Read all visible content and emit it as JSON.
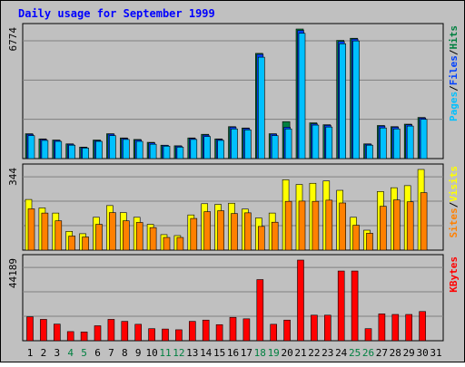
{
  "title": "Daily usage for September 1999",
  "colors": {
    "background": "#c0c0c0",
    "panel": "#c0c0c0",
    "border": "#000000",
    "grid": "#808080",
    "title": "#0000ff",
    "hits": "#008040",
    "files": "#0040ff",
    "pages": "#00c0ff",
    "visits": "#ffff00",
    "sites": "#ff8000",
    "kbytes": "#ff0000",
    "label_weekday": "#000000",
    "label_weekend": "#008040"
  },
  "chart_data": [
    {
      "type": "bar",
      "panel": "hits-files-pages",
      "ylabel": "6774",
      "ylim": [
        0,
        6774
      ],
      "legend": {
        "pages": "Pages",
        "files": "Files",
        "hits": "Hits",
        "sep1": "/",
        "sep2": "/"
      },
      "categories": [
        "1",
        "2",
        "3",
        "4",
        "5",
        "6",
        "7",
        "8",
        "9",
        "10",
        "11",
        "12",
        "13",
        "14",
        "15",
        "16",
        "17",
        "18",
        "19",
        "20",
        "21",
        "22",
        "23",
        "24",
        "25",
        "26",
        "27",
        "28",
        "29",
        "30",
        "31"
      ],
      "series": [
        {
          "name": "Hits",
          "values": [
            1300,
            1030,
            970,
            770,
            600,
            970,
            1300,
            1080,
            1000,
            850,
            700,
            670,
            1080,
            1270,
            1030,
            1670,
            1600,
            5500,
            1300,
            1930,
            6774,
            1870,
            1770,
            6180,
            6290,
            770,
            1730,
            1670,
            1800,
            2150,
            null
          ]
        },
        {
          "name": "Files",
          "values": [
            1270,
            1000,
            950,
            750,
            580,
            940,
            1280,
            1050,
            970,
            820,
            690,
            650,
            1050,
            1230,
            1000,
            1640,
            1570,
            5450,
            1280,
            1640,
            6700,
            1820,
            1740,
            6120,
            6250,
            750,
            1700,
            1640,
            1770,
            2120,
            null
          ]
        },
        {
          "name": "Pages",
          "values": [
            1200,
            950,
            900,
            700,
            550,
            900,
            1200,
            1000,
            900,
            750,
            650,
            600,
            1000,
            1150,
            950,
            1550,
            1500,
            5300,
            1200,
            1550,
            6550,
            1750,
            1650,
            6000,
            6150,
            700,
            1600,
            1550,
            1700,
            2050,
            null
          ]
        }
      ]
    },
    {
      "type": "bar",
      "panel": "visits-sites",
      "ylabel": "344",
      "ylim": [
        0,
        344
      ],
      "legend": {
        "sites": "Sites",
        "visits": "Visits",
        "sep1": "/"
      },
      "categories": [
        "1",
        "2",
        "3",
        "4",
        "5",
        "6",
        "7",
        "8",
        "9",
        "10",
        "11",
        "12",
        "13",
        "14",
        "15",
        "16",
        "17",
        "18",
        "19",
        "20",
        "21",
        "22",
        "23",
        "24",
        "25",
        "26",
        "27",
        "28",
        "29",
        "30",
        "31"
      ],
      "series": [
        {
          "name": "Visits",
          "values": [
            216,
            180,
            158,
            80,
            70,
            140,
            190,
            160,
            140,
            110,
            66,
            62,
            150,
            198,
            195,
            200,
            175,
            137,
            158,
            300,
            280,
            285,
            295,
            255,
            140,
            85,
            250,
            266,
            275,
            344,
            null
          ]
        },
        {
          "name": "Sites",
          "values": [
            176,
            158,
            125,
            60,
            56,
            110,
            160,
            125,
            118,
            96,
            54,
            54,
            135,
            164,
            168,
            156,
            159,
            101,
            119,
            208,
            209,
            208,
            213,
            201,
            106,
            72,
            187,
            214,
            206,
            245,
            null
          ]
        }
      ]
    },
    {
      "type": "bar",
      "panel": "kbytes",
      "ylabel": "44189",
      "ylim": [
        0,
        44189
      ],
      "legend": {
        "kbytes": "KBytes"
      },
      "categories": [
        "1",
        "2",
        "3",
        "4",
        "5",
        "6",
        "7",
        "8",
        "9",
        "10",
        "11",
        "12",
        "13",
        "14",
        "15",
        "16",
        "17",
        "18",
        "19",
        "20",
        "21",
        "22",
        "23",
        "24",
        "25",
        "26",
        "27",
        "28",
        "29",
        "30",
        "31"
      ],
      "series": [
        {
          "name": "KBytes",
          "values": [
            13100,
            11700,
            9100,
            5000,
            4800,
            8200,
            11700,
            10600,
            9000,
            6600,
            6400,
            6000,
            10600,
            11300,
            8800,
            12800,
            12000,
            33500,
            9000,
            11300,
            44189,
            14000,
            14000,
            38200,
            38200,
            6600,
            14700,
            14400,
            14400,
            16000,
            null
          ]
        }
      ]
    }
  ],
  "days": [
    "1",
    "2",
    "3",
    "4",
    "5",
    "6",
    "7",
    "8",
    "9",
    "10",
    "11",
    "12",
    "13",
    "14",
    "15",
    "16",
    "17",
    "18",
    "19",
    "20",
    "21",
    "22",
    "23",
    "24",
    "25",
    "26",
    "27",
    "28",
    "29",
    "30",
    "31"
  ],
  "weekend_days": [
    "4",
    "5",
    "11",
    "12",
    "18",
    "19",
    "25",
    "26"
  ]
}
